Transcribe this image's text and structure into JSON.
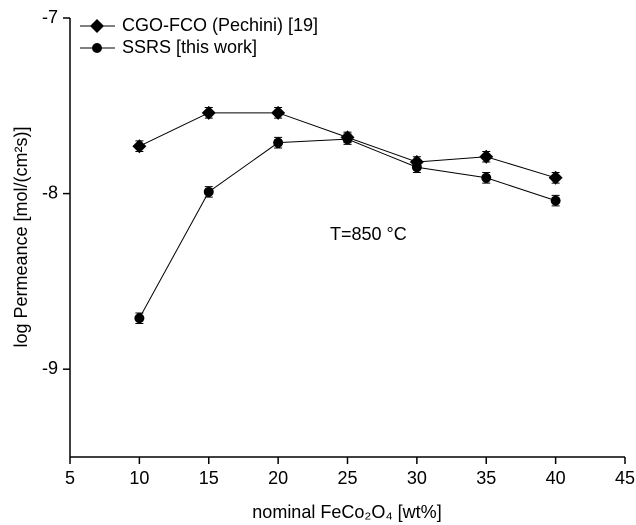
{
  "chart_data": {
    "type": "line",
    "xlabel": "nominal FeCo₂O₄ [wt%]",
    "ylabel": "log Permeance [mol/(cm²s)]",
    "annotation": "T=850 °C",
    "x": [
      10,
      15,
      20,
      25,
      30,
      35,
      40
    ],
    "series": [
      {
        "name": "CGO-FCO (Pechini) [19]",
        "color": "#000000",
        "marker": "diamond",
        "values": [
          -7.73,
          -7.54,
          -7.54,
          -7.68,
          -7.82,
          -7.79,
          -7.91
        ],
        "errors": [
          0.03,
          0.03,
          0.03,
          0.03,
          0.03,
          0.03,
          0.03
        ]
      },
      {
        "name": "SSRS [this work]",
        "color": "#000000",
        "marker": "circle",
        "values": [
          -8.71,
          -7.99,
          -7.71,
          -7.69,
          -7.85,
          -7.91,
          -8.04
        ],
        "errors": [
          0.03,
          0.03,
          0.03,
          0.03,
          0.03,
          0.03,
          0.03
        ]
      }
    ],
    "xlim": [
      5,
      45
    ],
    "xticks": [
      5,
      10,
      15,
      20,
      25,
      30,
      35,
      40,
      45
    ],
    "ylim": [
      -9.5,
      -7
    ],
    "yticks": [
      -7,
      -8,
      -9
    ],
    "legend": "upper left"
  }
}
